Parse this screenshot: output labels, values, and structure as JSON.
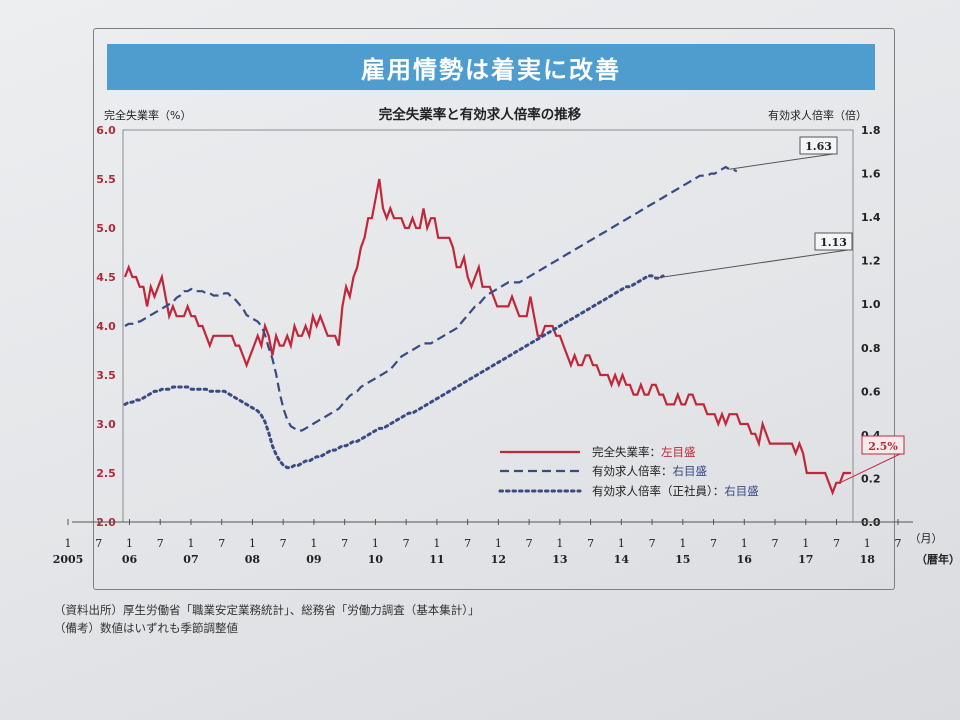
{
  "banner": {
    "title": "雇用情勢は着実に改善"
  },
  "chart_data": {
    "type": "line",
    "title": "完全失業率と有効求人倍率の推移",
    "left_axis": {
      "label": "完全失業率（%）",
      "range": [
        2.0,
        6.0
      ],
      "ticks": [
        "6.0",
        "5.5",
        "5.0",
        "4.5",
        "4.0",
        "3.5",
        "3.0",
        "2.5",
        "2.0"
      ]
    },
    "right_axis": {
      "label": "有効求人倍率（倍）",
      "range": [
        0.0,
        1.8
      ],
      "ticks": [
        "1.8",
        "1.6",
        "1.4",
        "1.2",
        "1.0",
        "0.8",
        "0.6",
        "0.4",
        "0.2",
        "0.0"
      ]
    },
    "x_axis": {
      "unit_month": "（月）",
      "unit_year": "（暦年）",
      "month_ticks": [
        "1",
        "7",
        "1",
        "7",
        "1",
        "7",
        "1",
        "7",
        "1",
        "7",
        "1",
        "7",
        "1",
        "7",
        "1",
        "7",
        "1",
        "7",
        "1",
        "7",
        "1",
        "7",
        "1",
        "7",
        "1",
        "7",
        "1",
        "7"
      ],
      "year_labels": [
        "2005",
        "06",
        "07",
        "08",
        "09",
        "10",
        "11",
        "12",
        "13",
        "14",
        "15",
        "16",
        "17",
        "18"
      ]
    },
    "series": [
      {
        "name": "完全失業率：左目盛",
        "legend_prefix": "完全失業率：",
        "legend_axis": "左目盛",
        "axis": "left",
        "style": "solid",
        "color": "#c0283a",
        "values": [
          4.5,
          4.6,
          4.5,
          4.5,
          4.4,
          4.4,
          4.2,
          4.4,
          4.3,
          4.4,
          4.5,
          4.3,
          4.1,
          4.2,
          4.1,
          4.1,
          4.1,
          4.2,
          4.1,
          4.1,
          4.0,
          4.0,
          3.9,
          3.8,
          3.9,
          3.9,
          3.9,
          3.9,
          3.9,
          3.9,
          3.8,
          3.8,
          3.7,
          3.6,
          3.7,
          3.8,
          3.9,
          3.8,
          4.0,
          3.9,
          3.7,
          3.9,
          3.8,
          3.8,
          3.9,
          3.8,
          4.0,
          3.9,
          3.9,
          4.0,
          3.9,
          4.1,
          4.0,
          4.1,
          4.0,
          3.9,
          3.9,
          3.9,
          3.8,
          4.2,
          4.4,
          4.3,
          4.5,
          4.6,
          4.8,
          4.9,
          5.1,
          5.1,
          5.3,
          5.5,
          5.2,
          5.1,
          5.2,
          5.1,
          5.1,
          5.1,
          5.0,
          5.0,
          5.1,
          5.0,
          5.0,
          5.2,
          5.0,
          5.1,
          5.1,
          4.9,
          4.9,
          4.9,
          4.9,
          4.8,
          4.6,
          4.6,
          4.7,
          4.5,
          4.4,
          4.5,
          4.6,
          4.4,
          4.4,
          4.4,
          4.3,
          4.2,
          4.2,
          4.2,
          4.2,
          4.3,
          4.2,
          4.1,
          4.1,
          4.1,
          4.3,
          4.1,
          3.9,
          3.9,
          4.0,
          4.0,
          4.0,
          3.9,
          3.9,
          3.8,
          3.7,
          3.6,
          3.7,
          3.6,
          3.6,
          3.7,
          3.7,
          3.6,
          3.6,
          3.5,
          3.5,
          3.5,
          3.4,
          3.5,
          3.4,
          3.5,
          3.4,
          3.4,
          3.3,
          3.3,
          3.4,
          3.3,
          3.3,
          3.4,
          3.4,
          3.3,
          3.3,
          3.2,
          3.2,
          3.2,
          3.3,
          3.2,
          3.2,
          3.3,
          3.3,
          3.2,
          3.2,
          3.2,
          3.1,
          3.1,
          3.1,
          3.0,
          3.1,
          3.0,
          3.1,
          3.1,
          3.1,
          3.0,
          3.0,
          3.0,
          2.9,
          2.9,
          2.8,
          3.0,
          2.9,
          2.8,
          2.8,
          2.8,
          2.8,
          2.8,
          2.8,
          2.8,
          2.7,
          2.8,
          2.7,
          2.5,
          2.5,
          2.5,
          2.5,
          2.5,
          2.5,
          2.4,
          2.3,
          2.4,
          2.4,
          2.5,
          2.5,
          2.5
        ]
      },
      {
        "name": "有効求人倍率：右目盛",
        "legend_prefix": "有効求人倍率：",
        "legend_axis": "右目盛",
        "axis": "right",
        "style": "dashed",
        "color": "#3a4a86",
        "values": [
          0.9,
          0.91,
          0.91,
          0.92,
          0.92,
          0.93,
          0.94,
          0.95,
          0.96,
          0.97,
          0.98,
          0.99,
          1.0,
          1.01,
          1.03,
          1.04,
          1.06,
          1.06,
          1.07,
          1.06,
          1.06,
          1.06,
          1.05,
          1.05,
          1.04,
          1.04,
          1.04,
          1.05,
          1.05,
          1.03,
          1.02,
          1.0,
          0.98,
          0.95,
          0.94,
          0.93,
          0.92,
          0.9,
          0.86,
          0.8,
          0.75,
          0.68,
          0.59,
          0.52,
          0.47,
          0.44,
          0.43,
          0.42,
          0.42,
          0.43,
          0.44,
          0.45,
          0.46,
          0.47,
          0.48,
          0.49,
          0.5,
          0.51,
          0.52,
          0.54,
          0.56,
          0.58,
          0.59,
          0.6,
          0.62,
          0.63,
          0.64,
          0.65,
          0.66,
          0.67,
          0.68,
          0.69,
          0.7,
          0.72,
          0.74,
          0.76,
          0.77,
          0.78,
          0.79,
          0.8,
          0.81,
          0.82,
          0.82,
          0.82,
          0.83,
          0.84,
          0.85,
          0.86,
          0.87,
          0.88,
          0.89,
          0.91,
          0.93,
          0.95,
          0.97,
          0.99,
          1.0,
          1.02,
          1.04,
          1.05,
          1.06,
          1.07,
          1.08,
          1.09,
          1.1,
          1.1,
          1.1,
          1.1,
          1.11,
          1.12,
          1.13,
          1.14,
          1.15,
          1.16,
          1.17,
          1.18,
          1.19,
          1.2,
          1.21,
          1.22,
          1.23,
          1.24,
          1.25,
          1.26,
          1.27,
          1.28,
          1.29,
          1.3,
          1.31,
          1.32,
          1.33,
          1.34,
          1.35,
          1.36,
          1.37,
          1.38,
          1.39,
          1.4,
          1.41,
          1.42,
          1.43,
          1.44,
          1.45,
          1.46,
          1.47,
          1.48,
          1.49,
          1.5,
          1.51,
          1.52,
          1.53,
          1.54,
          1.55,
          1.56,
          1.57,
          1.58,
          1.59,
          1.59,
          1.59,
          1.6,
          1.6,
          1.61,
          1.62,
          1.63,
          1.62,
          1.62,
          1.61
        ]
      },
      {
        "name": "有効求人倍率（正社員）：右目盛",
        "legend_prefix": "有効求人倍率（正社員）：",
        "legend_axis": "右目盛",
        "axis": "right",
        "style": "dotted",
        "color": "#3a4a86",
        "values": [
          0.54,
          0.55,
          0.55,
          0.56,
          0.56,
          0.57,
          0.58,
          0.59,
          0.6,
          0.6,
          0.61,
          0.61,
          0.61,
          0.62,
          0.62,
          0.62,
          0.62,
          0.62,
          0.61,
          0.61,
          0.61,
          0.61,
          0.61,
          0.6,
          0.6,
          0.6,
          0.6,
          0.6,
          0.59,
          0.58,
          0.57,
          0.56,
          0.55,
          0.54,
          0.53,
          0.52,
          0.51,
          0.49,
          0.46,
          0.41,
          0.35,
          0.31,
          0.28,
          0.26,
          0.25,
          0.25,
          0.26,
          0.26,
          0.27,
          0.28,
          0.28,
          0.29,
          0.3,
          0.3,
          0.31,
          0.32,
          0.33,
          0.33,
          0.34,
          0.35,
          0.35,
          0.36,
          0.37,
          0.37,
          0.38,
          0.39,
          0.4,
          0.41,
          0.42,
          0.43,
          0.43,
          0.44,
          0.45,
          0.46,
          0.47,
          0.48,
          0.49,
          0.5,
          0.5,
          0.51,
          0.52,
          0.53,
          0.54,
          0.55,
          0.56,
          0.57,
          0.58,
          0.59,
          0.6,
          0.61,
          0.62,
          0.63,
          0.64,
          0.65,
          0.66,
          0.67,
          0.68,
          0.69,
          0.7,
          0.71,
          0.72,
          0.73,
          0.74,
          0.75,
          0.76,
          0.77,
          0.78,
          0.79,
          0.8,
          0.81,
          0.82,
          0.83,
          0.84,
          0.85,
          0.86,
          0.87,
          0.88,
          0.89,
          0.9,
          0.91,
          0.92,
          0.93,
          0.94,
          0.95,
          0.96,
          0.97,
          0.98,
          0.99,
          1.0,
          1.01,
          1.02,
          1.03,
          1.04,
          1.05,
          1.06,
          1.07,
          1.08,
          1.08,
          1.09,
          1.1,
          1.11,
          1.12,
          1.13,
          1.13,
          1.12,
          1.12,
          1.13
        ]
      }
    ],
    "callouts": [
      {
        "text": "1.63",
        "series": 1
      },
      {
        "text": "1.13",
        "series": 2
      },
      {
        "text": "2.5%",
        "series": 0
      }
    ]
  },
  "notes": {
    "source": "（資料出所）厚生労働省「職業安定業務統計」、総務省「労働力調査（基本集計）」",
    "remark": "（備考）数値はいずれも季節調整値"
  }
}
